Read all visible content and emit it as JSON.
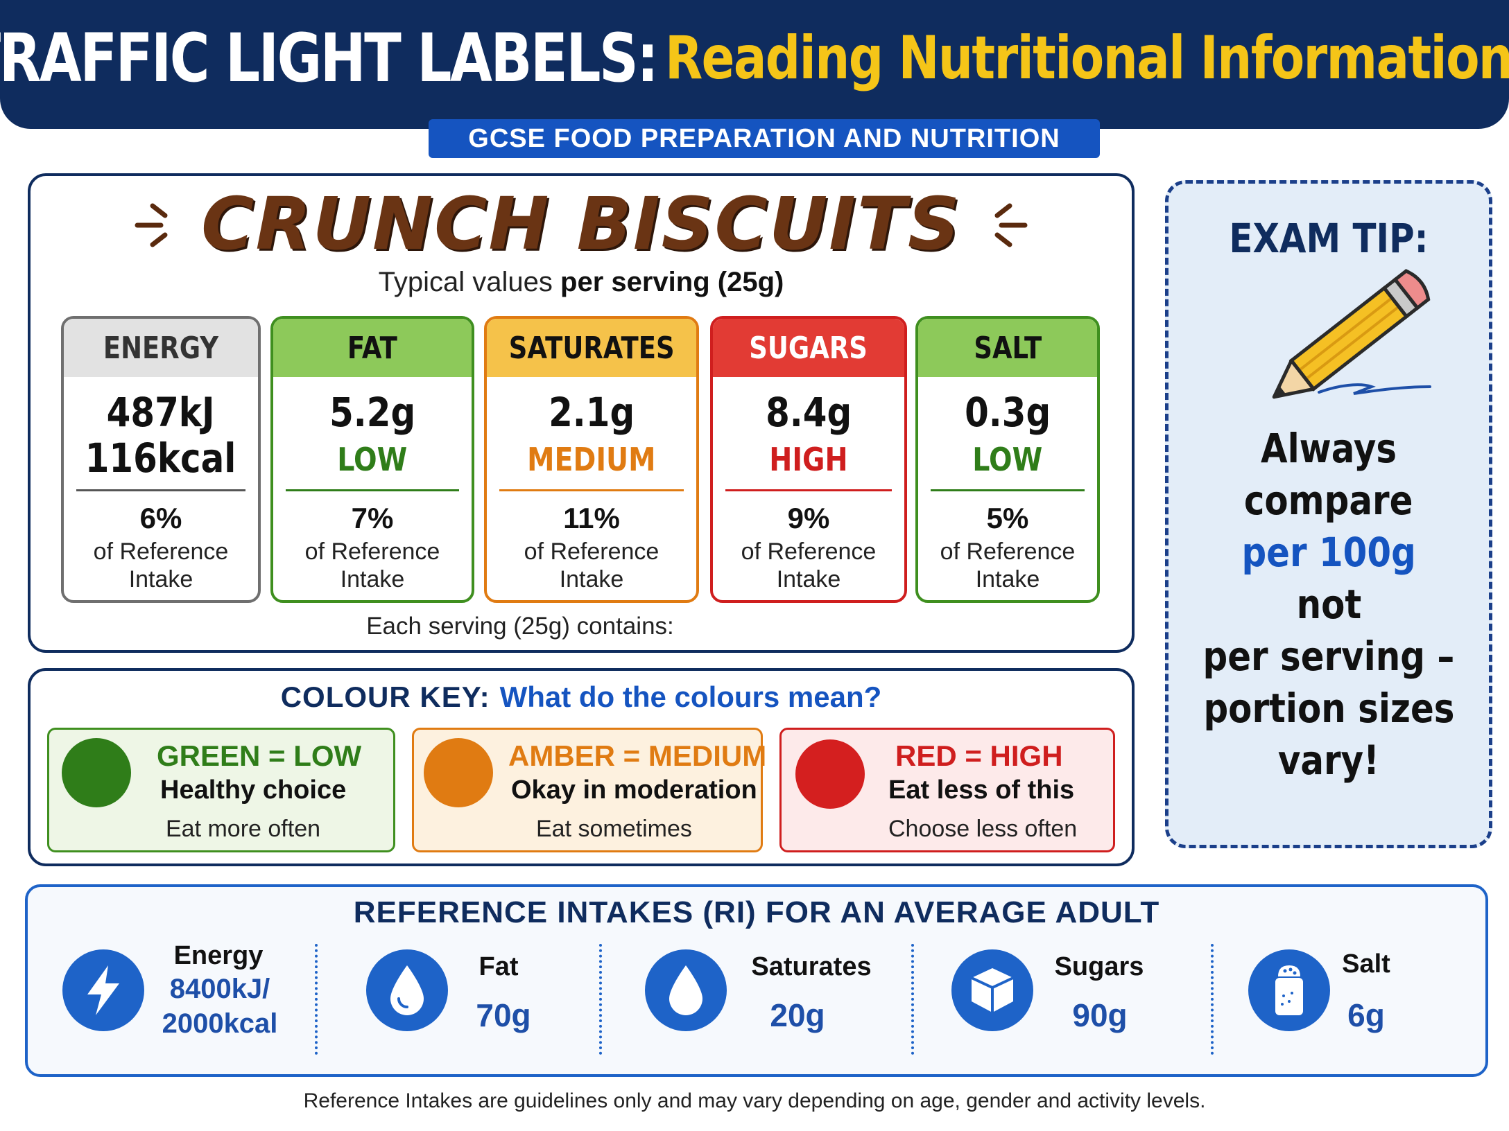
{
  "header": {
    "title_main": "TRAFFIC LIGHT LABELS:",
    "title_sub": "Reading Nutritional Information",
    "subject": "GCSE FOOD PREPARATION AND NUTRITION"
  },
  "product": {
    "name": "CRUNCH BISCUITS",
    "typical_prefix": "Typical values",
    "typical_bold": "per serving (25g)",
    "serving_note": "Each serving (25g) contains:",
    "nutrients": [
      {
        "name": "ENERGY",
        "value_line1": "487kJ",
        "value_line2": "116kcal",
        "level": "",
        "percent": "6%",
        "ri_line1": "of Reference",
        "ri_line2": "Intake",
        "color": "grey"
      },
      {
        "name": "FAT",
        "value_line1": "5.2g",
        "value_line2": "",
        "level": "LOW",
        "percent": "7%",
        "ri_line1": "of Reference",
        "ri_line2": "Intake",
        "color": "green"
      },
      {
        "name": "SATURATES",
        "value_line1": "2.1g",
        "value_line2": "",
        "level": "MEDIUM",
        "percent": "11%",
        "ri_line1": "of Reference",
        "ri_line2": "Intake",
        "color": "amber"
      },
      {
        "name": "SUGARS",
        "value_line1": "8.4g",
        "value_line2": "",
        "level": "HIGH",
        "percent": "9%",
        "ri_line1": "of Reference",
        "ri_line2": "Intake",
        "color": "red"
      },
      {
        "name": "SALT",
        "value_line1": "0.3g",
        "value_line2": "",
        "level": "LOW",
        "percent": "5%",
        "ri_line1": "of Reference",
        "ri_line2": "Intake",
        "color": "green"
      }
    ]
  },
  "colour_key": {
    "label": "COLOUR KEY:",
    "question": "What do the colours mean?",
    "items": [
      {
        "title": "GREEN = LOW",
        "desc": "Healthy choice",
        "action": "Eat more often",
        "color": "green"
      },
      {
        "title": "AMBER = MEDIUM",
        "desc": "Okay in moderation",
        "action": "Eat sometimes",
        "color": "amber"
      },
      {
        "title": "RED = HIGH",
        "desc": "Eat less of this",
        "action": "Choose less often",
        "color": "red"
      }
    ]
  },
  "exam_tip": {
    "heading": "EXAM TIP:",
    "lines": [
      "Always",
      "compare",
      "per 100g",
      "not",
      "per serving –",
      "portion sizes",
      "vary!"
    ],
    "highlight_index": 2,
    "icon": "pencil-icon"
  },
  "reference_intakes": {
    "heading": "REFERENCE INTAKES (RI) FOR AN AVERAGE ADULT",
    "items": [
      {
        "label": "Energy",
        "value_line1": "8400kJ/",
        "value_line2": "2000kcal",
        "icon": "lightning-icon"
      },
      {
        "label": "Fat",
        "value_line1": "70g",
        "value_line2": "",
        "icon": "droplet-icon"
      },
      {
        "label": "Saturates",
        "value_line1": "20g",
        "value_line2": "",
        "icon": "droplet-icon"
      },
      {
        "label": "Sugars",
        "value_line1": "90g",
        "value_line2": "",
        "icon": "sugar-cube-icon"
      },
      {
        "label": "Salt",
        "value_line1": "6g",
        "value_line2": "",
        "icon": "salt-shaker-icon"
      }
    ]
  },
  "footnote": "Reference Intakes are guidelines only and may vary depending on age, gender and activity levels.",
  "colors": {
    "navy": "#0f2c5e",
    "blue": "#1554c0",
    "yellow": "#f5c518",
    "green": "#3f8f1f",
    "amber": "#e07b12",
    "red": "#d41f1f",
    "grey": "#6f6f6f"
  }
}
